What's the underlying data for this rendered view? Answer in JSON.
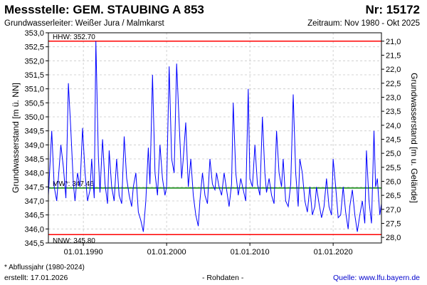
{
  "header": {
    "title": "Messstelle: GEM. STAUBING A 853",
    "nr": "Nr: 15172",
    "aquifer": "Grundwasserleiter:  Weißer Jura / Malmkarst",
    "period": "Zeitraum: Nov 1980 - Okt 2025"
  },
  "footer": {
    "footnote": "* Abflussjahr (1980-2024)",
    "created": "erstellt:  17.01.2026",
    "rawdata": "- Rohdaten -",
    "source": "Quelle:  www.lfu.bayern.de"
  },
  "colors": {
    "series": "#0000ff",
    "extreme_lines": "#ff0000",
    "mean_line": "#008000",
    "grid": "#c8c8c8"
  },
  "chart_data": {
    "type": "line",
    "xlabel": "",
    "ylabel": "Grundwasserstand [m ü. NN]",
    "y2label": "Grundwasserstand [m u. Gelände]",
    "xlim": [
      1985.8,
      2025.8
    ],
    "ylim": [
      345.5,
      353.0
    ],
    "y2lim": [
      28.2,
      20.7
    ],
    "x_ticks": [
      1990,
      2000,
      2010,
      2020
    ],
    "x_tick_labels": [
      "01.01.1990",
      "01.01.2000",
      "01.01.2010",
      "01.01.2020"
    ],
    "y_ticks": [
      345.5,
      346.0,
      346.5,
      347.0,
      347.5,
      348.0,
      348.5,
      349.0,
      349.5,
      350.0,
      350.5,
      351.0,
      351.5,
      352.0,
      352.5,
      353.0
    ],
    "y_tick_labels": [
      "345,5",
      "346,0",
      "346,5",
      "347,0",
      "347,5",
      "348,0",
      "348,5",
      "349,0",
      "349,5",
      "350,0",
      "350,5",
      "351,0",
      "351,5",
      "352,0",
      "352,5",
      "353,0"
    ],
    "y2_ticks": [
      21.0,
      21.5,
      22.0,
      22.5,
      23.0,
      23.5,
      24.0,
      24.5,
      25.0,
      25.5,
      26.0,
      26.5,
      27.0,
      27.5,
      28.0
    ],
    "y2_tick_labels": [
      "21,0",
      "21,5",
      "22,0",
      "22,5",
      "23,0",
      "23,5",
      "24,0",
      "24,5",
      "25,0",
      "25,5",
      "26,0",
      "26,5",
      "27,0",
      "27,5",
      "28,0"
    ],
    "grid": true,
    "reference_lines": [
      {
        "label": "HHW: 352.70",
        "y": 352.7
      },
      {
        "label": "MW*: 347.46",
        "y": 347.46
      },
      {
        "label": "NNW: 345.80",
        "y": 345.8
      }
    ],
    "series": [
      {
        "x": [
          1985.8,
          1986.2,
          1986.5,
          1986.8,
          1987.0,
          1987.3,
          1987.6,
          1987.9,
          1988.2,
          1988.5,
          1988.8,
          1989.0,
          1989.3,
          1989.6,
          1989.9,
          1990.2,
          1990.5,
          1990.8,
          1991.0,
          1991.3,
          1991.5,
          1991.8,
          1992.0,
          1992.3,
          1992.6,
          1992.9,
          1993.1,
          1993.4,
          1993.7,
          1994.0,
          1994.3,
          1994.6,
          1994.9,
          1995.2,
          1995.5,
          1995.8,
          1996.0,
          1996.3,
          1996.6,
          1996.9,
          1997.2,
          1997.5,
          1997.8,
          1998.0,
          1998.3,
          1998.6,
          1998.9,
          1999.2,
          1999.5,
          1999.8,
          2000.0,
          2000.3,
          2000.6,
          2000.9,
          2001.2,
          2001.5,
          2001.8,
          2002.0,
          2002.3,
          2002.6,
          2002.9,
          2003.2,
          2003.5,
          2003.8,
          2004.0,
          2004.3,
          2004.6,
          2004.9,
          2005.2,
          2005.5,
          2005.8,
          2006.0,
          2006.3,
          2006.6,
          2006.9,
          2007.2,
          2007.5,
          2007.8,
          2008.0,
          2008.3,
          2008.6,
          2008.9,
          2009.2,
          2009.5,
          2009.8,
          2010.0,
          2010.3,
          2010.6,
          2010.9,
          2011.2,
          2011.5,
          2011.8,
          2012.0,
          2012.3,
          2012.6,
          2012.9,
          2013.2,
          2013.5,
          2013.8,
          2014.0,
          2014.3,
          2014.6,
          2014.9,
          2015.2,
          2015.5,
          2015.8,
          2016.0,
          2016.3,
          2016.6,
          2016.9,
          2017.2,
          2017.5,
          2017.8,
          2018.0,
          2018.3,
          2018.6,
          2018.9,
          2019.2,
          2019.5,
          2019.8,
          2020.0,
          2020.3,
          2020.6,
          2020.9,
          2021.2,
          2021.5,
          2021.8,
          2022.0,
          2022.3,
          2022.6,
          2022.9,
          2023.2,
          2023.5,
          2023.8,
          2024.0,
          2024.3,
          2024.6,
          2024.9,
          2025.1,
          2025.3,
          2025.6,
          2025.8
        ],
        "values": [
          347.2,
          349.5,
          347.5,
          347.0,
          347.8,
          349.0,
          348.2,
          347.1,
          351.2,
          349.5,
          347.6,
          347.0,
          348.0,
          347.5,
          349.6,
          348.0,
          347.0,
          347.4,
          348.5,
          347.1,
          352.7,
          348.6,
          347.3,
          349.2,
          347.6,
          346.9,
          348.8,
          347.5,
          347.0,
          348.5,
          347.2,
          346.9,
          349.3,
          347.8,
          347.2,
          346.8,
          347.5,
          348.0,
          346.6,
          346.3,
          345.9,
          347.0,
          348.9,
          347.6,
          351.5,
          348.0,
          347.2,
          349.0,
          347.8,
          347.2,
          347.5,
          351.8,
          348.5,
          348.0,
          351.9,
          349.8,
          347.8,
          348.5,
          349.8,
          347.5,
          348.5,
          347.2,
          346.5,
          346.1,
          347.0,
          348.0,
          347.2,
          346.9,
          348.5,
          347.6,
          347.4,
          348.0,
          347.5,
          347.2,
          348.0,
          347.4,
          346.8,
          347.6,
          350.5,
          348.0,
          347.2,
          347.8,
          347.4,
          347.0,
          351.0,
          347.8,
          347.5,
          349.0,
          347.6,
          347.2,
          350.0,
          348.0,
          347.3,
          347.8,
          347.2,
          346.9,
          349.5,
          348.0,
          347.5,
          348.5,
          347.0,
          346.8,
          347.6,
          350.8,
          348.0,
          346.8,
          348.5,
          348.0,
          347.0,
          346.6,
          347.5,
          346.5,
          346.8,
          347.5,
          346.9,
          346.4,
          346.8,
          347.8,
          346.8,
          346.5,
          348.5,
          347.5,
          346.4,
          346.5,
          347.5,
          346.6,
          346.0,
          346.8,
          347.4,
          346.5,
          345.9,
          346.5,
          347.0,
          346.2,
          348.8,
          347.0,
          346.2,
          349.5,
          347.5,
          347.8,
          346.5,
          346.9
        ]
      }
    ]
  }
}
